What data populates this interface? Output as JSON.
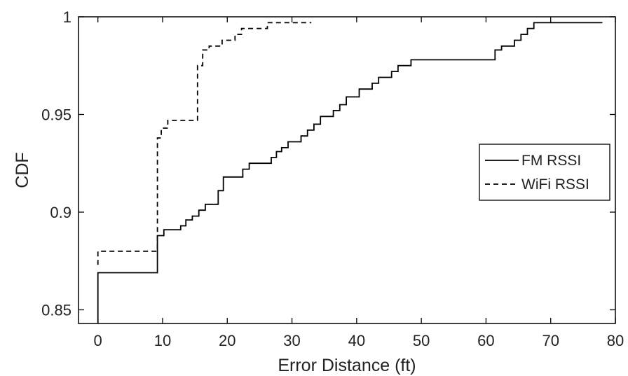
{
  "chart_data": {
    "type": "line",
    "title": "",
    "xlabel": "Error Distance (ft)",
    "ylabel": "CDF",
    "xlim": [
      -3,
      80
    ],
    "ylim": [
      0.843,
      1.0
    ],
    "x_ticks": [
      0,
      10,
      20,
      30,
      40,
      50,
      60,
      70,
      80
    ],
    "y_ticks": [
      0.85,
      0.9,
      0.95,
      1
    ],
    "x_tick_labels": [
      "0",
      "10",
      "20",
      "30",
      "40",
      "50",
      "60",
      "70",
      "80"
    ],
    "y_tick_labels": [
      "0.85",
      "0.9",
      "0.95",
      "1"
    ],
    "grid": false,
    "legend_position": "center-right",
    "series": [
      {
        "name": "FM RSSI",
        "style": "solid",
        "color": "#000000",
        "x": [
          0,
          0,
          9.2,
          9.2,
          10.2,
          12.8,
          13.6,
          14.6,
          15.6,
          16.6,
          18.6,
          19.4,
          20.4,
          22.4,
          23.4,
          26.8,
          27.6,
          28.4,
          29.4,
          31.4,
          32.4,
          33.4,
          34.4,
          36.4,
          37.4,
          38.4,
          40.4,
          42.4,
          43.4,
          45.4,
          46.4,
          48.4,
          61.4,
          61.4,
          62.4,
          64.4,
          65.4,
          66.4,
          67.4,
          78
        ],
        "y": [
          0.843,
          0.869,
          0.869,
          0.888,
          0.891,
          0.893,
          0.896,
          0.898,
          0.901,
          0.904,
          0.911,
          0.918,
          0.918,
          0.922,
          0.925,
          0.928,
          0.931,
          0.933,
          0.936,
          0.939,
          0.942,
          0.945,
          0.949,
          0.952,
          0.955,
          0.959,
          0.963,
          0.966,
          0.969,
          0.972,
          0.975,
          0.978,
          0.978,
          0.983,
          0.985,
          0.988,
          0.991,
          0.994,
          0.997,
          0.997
        ]
      },
      {
        "name": "WiFi RSSI",
        "style": "dashed",
        "color": "#000000",
        "x": [
          0,
          0,
          9.2,
          9.2,
          9.8,
          10.8,
          15.4,
          15.4,
          16.2,
          17.2,
          19.2,
          21.2,
          22.2,
          26.2,
          33
        ],
        "y": [
          0.873,
          0.88,
          0.88,
          0.938,
          0.943,
          0.947,
          0.947,
          0.975,
          0.983,
          0.985,
          0.988,
          0.991,
          0.994,
          0.997,
          0.997
        ]
      }
    ]
  }
}
